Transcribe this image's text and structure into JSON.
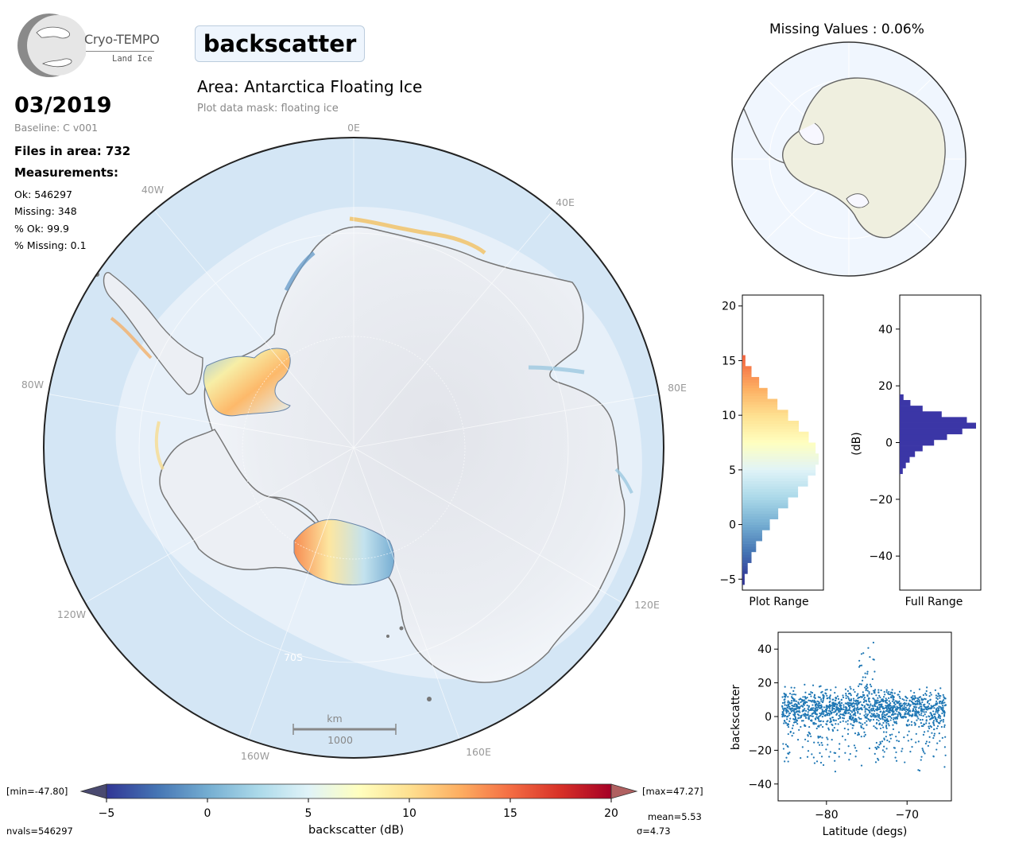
{
  "header": {
    "logo_name": "Cryo-TEMPO",
    "logo_sub": "Land Ice",
    "parameter": "backscatter",
    "area": "Area: Antarctica Floating Ice",
    "mask": "Plot data mask: floating ice"
  },
  "stats": {
    "date": "03/2019",
    "baseline": "Baseline: C v001",
    "files": "Files in area: 732",
    "measurements_label": "Measurements:",
    "ok": "Ok: 546297",
    "missing": "Missing: 348",
    "pct_ok": "% Ok: 99.9",
    "pct_missing": "% Missing: 0.1"
  },
  "map": {
    "lon_labels": [
      "0E",
      "40E",
      "80E",
      "120E",
      "160E",
      "160W",
      "120W",
      "80W",
      "40W"
    ],
    "lat_label": "70S",
    "scale_unit": "km",
    "scale_value": "1000"
  },
  "colorbar": {
    "min_label": "[min=-47.80]",
    "max_label": "[max=47.27]",
    "ticks": [
      "−5",
      "0",
      "5",
      "10",
      "15",
      "20"
    ],
    "label": "backscatter (dB)",
    "nvals": "nvals=546297",
    "mean": "mean=5.53",
    "sigma": "σ=4.73",
    "colors": [
      "#313695",
      "#4575b4",
      "#74add1",
      "#abd9e9",
      "#e0f3f8",
      "#ffffbf",
      "#fee090",
      "#fdae61",
      "#f46d43",
      "#d73027",
      "#a50026"
    ]
  },
  "inset": {
    "missing_title": "Missing Values : 0.06%",
    "land_color": "#efefdf",
    "ocean_color": "#f0f6fe"
  },
  "chart_data": [
    {
      "type": "bar",
      "orientation": "horizontal",
      "xlabel": "Plot Range",
      "yticks": [
        "−5",
        "0",
        "5",
        "10",
        "15",
        "20"
      ],
      "ylim": [
        -6,
        21
      ],
      "bins_center": [
        -5,
        -4,
        -3,
        -2,
        -1,
        0,
        1,
        2,
        3,
        4,
        5,
        6,
        7,
        8,
        9,
        10,
        11,
        12,
        13,
        14,
        15
      ],
      "values": [
        0.03,
        0.07,
        0.12,
        0.18,
        0.26,
        0.36,
        0.47,
        0.6,
        0.73,
        0.86,
        0.96,
        1.0,
        0.96,
        0.87,
        0.74,
        0.6,
        0.46,
        0.33,
        0.22,
        0.12,
        0.04
      ]
    },
    {
      "type": "bar",
      "orientation": "horizontal",
      "xlabel": "Full Range",
      "ylabel": "(dB)",
      "yticks": [
        "−40",
        "−20",
        "0",
        "20",
        "40"
      ],
      "ylim": [
        -52,
        52
      ],
      "bins_center": [
        -10,
        -8,
        -6,
        -4,
        -2,
        0,
        2,
        4,
        6,
        8,
        10,
        12,
        14,
        16
      ],
      "values": [
        0.04,
        0.08,
        0.13,
        0.2,
        0.3,
        0.45,
        0.62,
        0.82,
        1.0,
        0.88,
        0.55,
        0.3,
        0.14,
        0.05
      ],
      "color": "#3b36a6"
    },
    {
      "type": "scatter",
      "xlabel": "Latitude (degs)",
      "ylabel": "backscatter",
      "xticks": [
        "−80",
        "−70"
      ],
      "yticks": [
        "−40",
        "−20",
        "0",
        "20",
        "40"
      ],
      "xlim": [
        -86,
        -64.5
      ],
      "ylim": [
        -50,
        50
      ],
      "color": "#1f77b4"
    }
  ]
}
